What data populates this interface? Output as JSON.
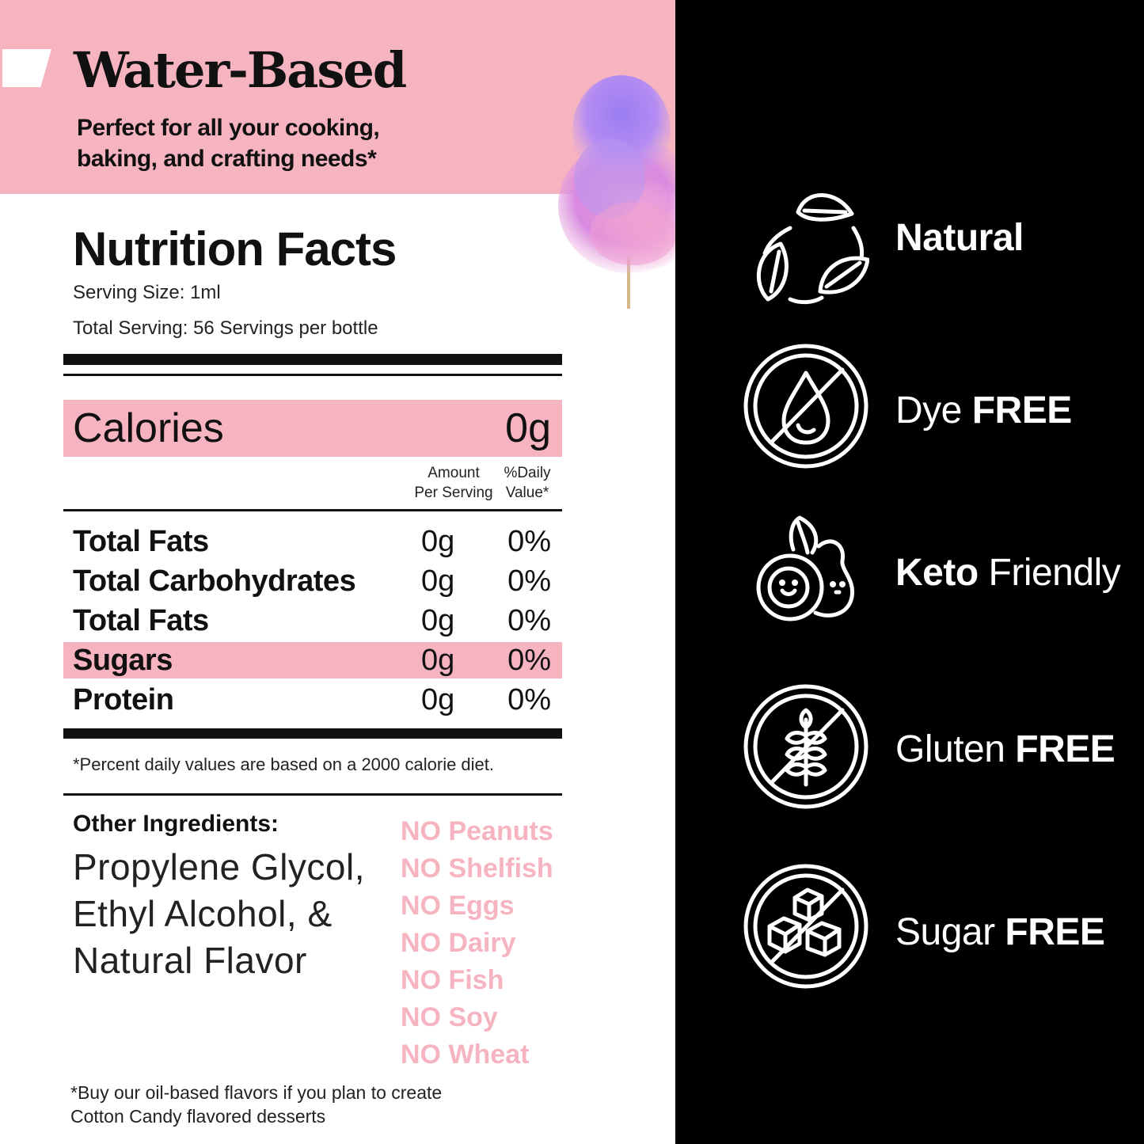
{
  "banner": {
    "title": "Water-Based",
    "subtitle_line1": "Perfect for all your cooking,",
    "subtitle_line2": "baking, and crafting needs*"
  },
  "nutrition": {
    "title": "Nutrition Facts",
    "serving_size": "Serving Size: 1ml",
    "total_serving": "Total Serving: 56 Servings per bottle",
    "calories_label": "Calories",
    "calories_value": "0g",
    "col_amount_1": "Amount",
    "col_amount_2": "Per Serving",
    "col_daily_1": "%Daily",
    "col_daily_2": "Value*",
    "rows": [
      {
        "name": "Total Fats",
        "amount": "0g",
        "daily": "0%"
      },
      {
        "name": "Total Carbohydrates",
        "amount": "0g",
        "daily": "0%"
      },
      {
        "name": "Total Fats",
        "amount": "0g",
        "daily": "0%"
      },
      {
        "name": "Sugars",
        "amount": "0g",
        "daily": "0%"
      },
      {
        "name": "Protein",
        "amount": "0g",
        "daily": "0%"
      }
    ],
    "footnote": "*Percent daily values are based on a 2000 calorie diet."
  },
  "ingredients": {
    "label": "Other Ingredients:",
    "line1": "Propylene Glycol,",
    "line2": "Ethyl Alcohol, &",
    "line3": "Natural Flavor"
  },
  "allergens": [
    "NO Peanuts",
    "NO Shelfish",
    "NO Eggs",
    "NO Dairy",
    "NO Fish",
    "NO Soy",
    "NO Wheat"
  ],
  "bottom_note": {
    "line1": "*Buy our oil-based flavors if you plan to create",
    "line2": "Cotton Candy flavored desserts"
  },
  "badges": [
    {
      "icon": "leaves-cycle-icon",
      "pre": "",
      "bold": "Natural",
      "post": ""
    },
    {
      "icon": "no-dye-drop-icon",
      "pre": "Dye ",
      "bold": "FREE",
      "post": ""
    },
    {
      "icon": "avocado-icon",
      "pre": "",
      "bold": "Keto",
      "post": " Friendly"
    },
    {
      "icon": "no-gluten-wheat-icon",
      "pre": "Gluten ",
      "bold": "FREE",
      "post": ""
    },
    {
      "icon": "no-sugar-cubes-icon",
      "pre": "Sugar ",
      "bold": "FREE",
      "post": ""
    }
  ],
  "colors": {
    "pink": "#f6b3c0",
    "black": "#000000",
    "text": "#111111"
  }
}
